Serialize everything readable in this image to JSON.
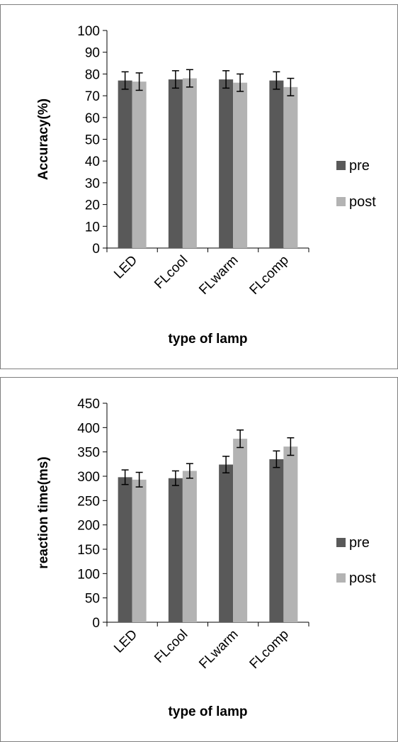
{
  "colors": {
    "pre": "#595959",
    "post": "#b3b3b3"
  },
  "chart_data": [
    {
      "type": "bar",
      "title": "",
      "xlabel": "type of lamp",
      "ylabel": "Accuracy(%)",
      "categories": [
        "LED",
        "FLcool",
        "FLwarm",
        "FLcomp"
      ],
      "ylim": [
        0,
        100
      ],
      "yticks": [
        0,
        10,
        20,
        30,
        40,
        50,
        60,
        70,
        80,
        90,
        100
      ],
      "legend_position": "right",
      "series": [
        {
          "name": "pre",
          "values": [
            77,
            77.5,
            77.5,
            77
          ],
          "errors": [
            4,
            4,
            4,
            4
          ]
        },
        {
          "name": "post",
          "values": [
            76.5,
            78,
            76,
            74
          ],
          "errors": [
            4,
            4,
            4,
            4
          ]
        }
      ]
    },
    {
      "type": "bar",
      "title": "",
      "xlabel": "type of lamp",
      "ylabel": "reaction time(ms)",
      "categories": [
        "LED",
        "FLcool",
        "FLwarm",
        "FLcomp"
      ],
      "ylim": [
        0,
        450
      ],
      "yticks": [
        0,
        50,
        100,
        150,
        200,
        250,
        300,
        350,
        400,
        450
      ],
      "legend_position": "right",
      "series": [
        {
          "name": "pre",
          "values": [
            298,
            296,
            324,
            335
          ],
          "errors": [
            15,
            15,
            17,
            17
          ]
        },
        {
          "name": "post",
          "values": [
            293,
            311,
            377,
            361
          ],
          "errors": [
            15,
            15,
            18,
            18
          ]
        }
      ]
    }
  ]
}
